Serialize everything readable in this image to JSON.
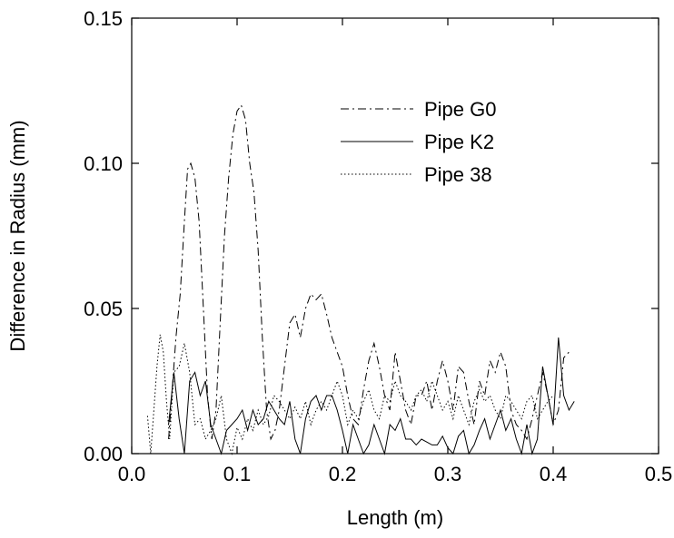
{
  "chart_data": {
    "type": "line",
    "title": "",
    "xlabel": "Length (m)",
    "ylabel": "Difference in Radius (mm)",
    "xlim": [
      0.0,
      0.5
    ],
    "ylim": [
      0.0,
      0.15
    ],
    "xticks": [
      "0.0",
      "0.1",
      "0.2",
      "0.3",
      "0.4",
      "0.5"
    ],
    "yticks": [
      "0.00",
      "0.05",
      "0.10",
      "0.15"
    ],
    "grid": false,
    "legend_position": "upper-right",
    "series": [
      {
        "name": "Pipe G0",
        "style": "dashdot",
        "x": [
          0.035,
          0.038,
          0.042,
          0.046,
          0.05,
          0.053,
          0.056,
          0.06,
          0.064,
          0.068,
          0.072,
          0.076,
          0.08,
          0.084,
          0.088,
          0.092,
          0.096,
          0.1,
          0.104,
          0.108,
          0.112,
          0.116,
          0.12,
          0.124,
          0.128,
          0.132,
          0.136,
          0.14,
          0.145,
          0.15,
          0.155,
          0.16,
          0.165,
          0.17,
          0.175,
          0.18,
          0.185,
          0.19,
          0.195,
          0.2,
          0.205,
          0.21,
          0.215,
          0.22,
          0.225,
          0.23,
          0.235,
          0.24,
          0.245,
          0.25,
          0.255,
          0.26,
          0.265,
          0.27,
          0.275,
          0.28,
          0.285,
          0.29,
          0.295,
          0.3,
          0.305,
          0.31,
          0.315,
          0.32,
          0.325,
          0.33,
          0.335,
          0.34,
          0.345,
          0.35,
          0.355,
          0.36,
          0.365,
          0.37,
          0.375,
          0.38,
          0.385,
          0.39,
          0.395,
          0.4,
          0.405,
          0.41,
          0.415
        ],
        "values": [
          0.005,
          0.02,
          0.04,
          0.055,
          0.08,
          0.098,
          0.1,
          0.095,
          0.08,
          0.05,
          0.02,
          0.005,
          0.015,
          0.045,
          0.075,
          0.095,
          0.11,
          0.118,
          0.12,
          0.115,
          0.1,
          0.09,
          0.07,
          0.04,
          0.015,
          0.005,
          0.008,
          0.015,
          0.03,
          0.045,
          0.048,
          0.04,
          0.05,
          0.055,
          0.053,
          0.055,
          0.048,
          0.04,
          0.035,
          0.03,
          0.02,
          0.012,
          0.01,
          0.022,
          0.032,
          0.038,
          0.03,
          0.02,
          0.015,
          0.035,
          0.025,
          0.015,
          0.01,
          0.02,
          0.02,
          0.025,
          0.015,
          0.025,
          0.032,
          0.025,
          0.015,
          0.03,
          0.028,
          0.018,
          0.01,
          0.025,
          0.02,
          0.032,
          0.028,
          0.035,
          0.03,
          0.015,
          0.01,
          0.008,
          0.005,
          0.012,
          0.02,
          0.028,
          0.02,
          0.01,
          0.015,
          0.033,
          0.035
        ]
      },
      {
        "name": "Pipe K2",
        "style": "solid",
        "x": [
          0.035,
          0.04,
          0.045,
          0.05,
          0.055,
          0.06,
          0.065,
          0.07,
          0.075,
          0.08,
          0.085,
          0.09,
          0.095,
          0.1,
          0.105,
          0.11,
          0.115,
          0.12,
          0.125,
          0.13,
          0.135,
          0.14,
          0.145,
          0.15,
          0.155,
          0.16,
          0.165,
          0.17,
          0.175,
          0.18,
          0.185,
          0.19,
          0.195,
          0.2,
          0.205,
          0.21,
          0.215,
          0.22,
          0.225,
          0.23,
          0.235,
          0.24,
          0.245,
          0.25,
          0.255,
          0.26,
          0.265,
          0.27,
          0.275,
          0.28,
          0.285,
          0.29,
          0.295,
          0.3,
          0.305,
          0.31,
          0.315,
          0.32,
          0.325,
          0.33,
          0.335,
          0.34,
          0.345,
          0.35,
          0.355,
          0.36,
          0.365,
          0.37,
          0.375,
          0.38,
          0.385,
          0.39,
          0.395,
          0.4,
          0.405,
          0.41,
          0.415,
          0.42
        ],
        "values": [
          0.01,
          0.028,
          0.012,
          0.0,
          0.025,
          0.028,
          0.02,
          0.025,
          0.01,
          0.005,
          0.0,
          0.008,
          0.01,
          0.012,
          0.015,
          0.008,
          0.015,
          0.01,
          0.012,
          0.018,
          0.015,
          0.012,
          0.01,
          0.018,
          0.005,
          0.0,
          0.012,
          0.018,
          0.02,
          0.015,
          0.02,
          0.02,
          0.015,
          0.008,
          0.0,
          0.01,
          0.005,
          0.0,
          0.003,
          0.01,
          0.005,
          0.0,
          0.01,
          0.008,
          0.012,
          0.005,
          0.005,
          0.003,
          0.005,
          0.004,
          0.003,
          0.003,
          0.006,
          0.002,
          0.0,
          0.006,
          0.008,
          0.0,
          0.003,
          0.008,
          0.012,
          0.005,
          0.01,
          0.015,
          0.008,
          0.012,
          0.005,
          0.0,
          0.01,
          0.0,
          0.005,
          0.03,
          0.02,
          0.01,
          0.04,
          0.02,
          0.015,
          0.018
        ]
      },
      {
        "name": "Pipe 38",
        "style": "dotted",
        "x": [
          0.015,
          0.018,
          0.021,
          0.024,
          0.027,
          0.03,
          0.033,
          0.036,
          0.04,
          0.045,
          0.05,
          0.055,
          0.06,
          0.065,
          0.07,
          0.075,
          0.08,
          0.085,
          0.09,
          0.095,
          0.1,
          0.105,
          0.11,
          0.115,
          0.12,
          0.125,
          0.13,
          0.135,
          0.14,
          0.145,
          0.15,
          0.155,
          0.16,
          0.165,
          0.17,
          0.175,
          0.18,
          0.185,
          0.19,
          0.195,
          0.2,
          0.205,
          0.21,
          0.215,
          0.22,
          0.225,
          0.23,
          0.235,
          0.24,
          0.245,
          0.25,
          0.255,
          0.26,
          0.265,
          0.27,
          0.275,
          0.28,
          0.285,
          0.29,
          0.295,
          0.3,
          0.305,
          0.31,
          0.315,
          0.32,
          0.325,
          0.33,
          0.335,
          0.34,
          0.345,
          0.35,
          0.355,
          0.36,
          0.365,
          0.37,
          0.375,
          0.38,
          0.385,
          0.39,
          0.395,
          0.4
        ],
        "values": [
          0.013,
          0.0,
          0.015,
          0.03,
          0.041,
          0.035,
          0.018,
          0.005,
          0.028,
          0.03,
          0.038,
          0.028,
          0.01,
          0.012,
          0.005,
          0.008,
          0.012,
          0.02,
          0.005,
          0.0,
          0.009,
          0.005,
          0.012,
          0.008,
          0.015,
          0.01,
          0.013,
          0.02,
          0.018,
          0.015,
          0.012,
          0.016,
          0.012,
          0.018,
          0.01,
          0.015,
          0.018,
          0.015,
          0.02,
          0.025,
          0.02,
          0.01,
          0.015,
          0.012,
          0.018,
          0.022,
          0.015,
          0.012,
          0.02,
          0.018,
          0.025,
          0.02,
          0.018,
          0.015,
          0.02,
          0.022,
          0.018,
          0.025,
          0.02,
          0.015,
          0.018,
          0.012,
          0.02,
          0.015,
          0.01,
          0.018,
          0.022,
          0.018,
          0.02,
          0.015,
          0.012,
          0.02,
          0.018,
          0.015,
          0.012,
          0.018,
          0.02,
          0.012,
          0.015,
          0.018,
          0.02
        ]
      }
    ]
  }
}
